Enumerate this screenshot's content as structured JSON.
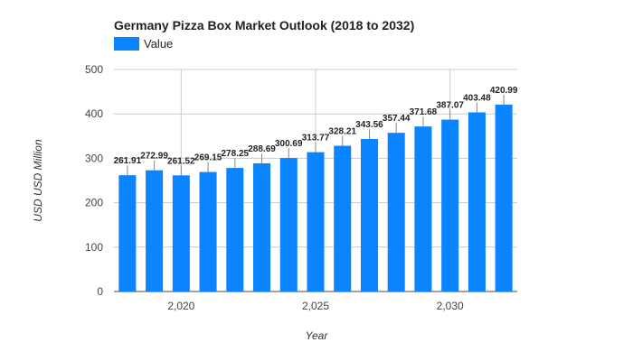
{
  "chart_data": {
    "type": "bar",
    "title": "Germany Pizza Box Market Outlook (2018 to 2032)",
    "legend": [
      {
        "name": "Value",
        "color": "#0a84ff"
      }
    ],
    "legend_position": "top-left",
    "xlabel": "Year",
    "ylabel": "USD USD Million",
    "ylim": [
      0,
      500
    ],
    "y_ticks": [
      0,
      100,
      200,
      300,
      400,
      500
    ],
    "y_tick_labels": [
      "0",
      "100",
      "200",
      "300",
      "400",
      "500"
    ],
    "x_ticks": [
      2020,
      2025,
      2030
    ],
    "x_tick_labels": [
      "2,020",
      "2,025",
      "2,030"
    ],
    "grid": true,
    "series": [
      {
        "name": "Value",
        "color": "#0a84ff",
        "x": [
          2018,
          2019,
          2020,
          2021,
          2022,
          2023,
          2024,
          2025,
          2026,
          2027,
          2028,
          2029,
          2030,
          2031,
          2032
        ],
        "values": [
          261.91,
          272.99,
          261.52,
          269.15,
          278.25,
          288.69,
          300.69,
          313.77,
          328.21,
          343.56,
          357.44,
          371.68,
          387.07,
          403.48,
          420.99
        ],
        "labels": [
          "261.91",
          "272.99",
          "261.52",
          "269.15",
          "278.25",
          "288.69",
          "300.69",
          "313.77",
          "328.21",
          "343.56",
          "357.44",
          "371.68",
          "387.07",
          "403.48",
          "420.99"
        ]
      }
    ]
  }
}
